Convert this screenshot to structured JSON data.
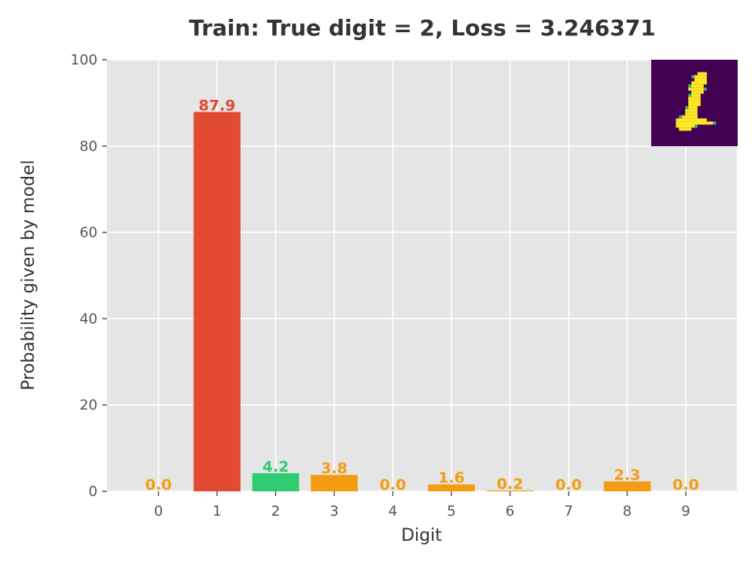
{
  "chart_data": {
    "type": "bar",
    "title": "Train: True digit = 2, Loss = 3.246371",
    "xlabel": "Digit",
    "ylabel": "Probability given by model",
    "categories": [
      "0",
      "1",
      "2",
      "3",
      "4",
      "5",
      "6",
      "7",
      "8",
      "9"
    ],
    "values": [
      0.0,
      87.9,
      4.2,
      3.8,
      0.0,
      1.6,
      0.2,
      0.0,
      2.3,
      0.0
    ],
    "value_labels": [
      "0.0",
      "87.9",
      "4.2",
      "3.8",
      "0.0",
      "1.6",
      "0.2",
      "0.0",
      "2.3",
      "0.0"
    ],
    "ylim": [
      0,
      100
    ],
    "yticks": [
      0,
      20,
      40,
      60,
      80,
      100
    ],
    "grid": true,
    "true_digit": 2,
    "predicted_digit": 1,
    "inset_image": "handwritten-digit-1",
    "colors": {
      "background": "#e5e5e5",
      "grid": "#ffffff",
      "predicted": "#e24a33",
      "true": "#2ecc71",
      "other": "#f39c12",
      "inset_bg": "#440154",
      "inset_fg": "#fde725"
    }
  }
}
